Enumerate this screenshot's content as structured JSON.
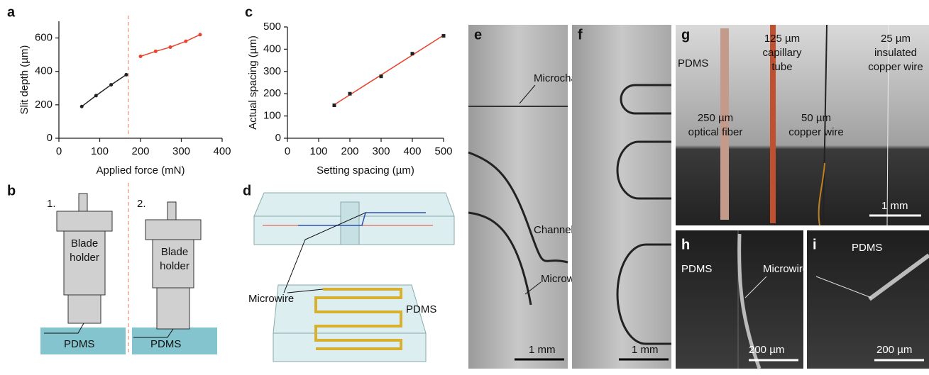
{
  "chart_data": [
    {
      "type": "line",
      "panel": "a",
      "xlabel": "Applied force (mN)",
      "ylabel": "Slit depth (µm)",
      "xlim": [
        0,
        400
      ],
      "xticks": [
        0,
        100,
        200,
        300,
        400
      ],
      "ylim": [
        0,
        700
      ],
      "yticks": [
        0,
        200,
        400,
        600
      ],
      "vline": 170,
      "series": [
        {
          "color": "#222222",
          "x": [
            56,
            91,
            128,
            165
          ],
          "values": [
            190,
            255,
            320,
            380
          ]
        },
        {
          "color": "#e8432d",
          "x": [
            200,
            237,
            273,
            311,
            346
          ],
          "values": [
            490,
            520,
            545,
            580,
            620
          ]
        }
      ]
    },
    {
      "type": "scatter-fit",
      "panel": "c",
      "xlabel": "Setting spacing (µm)",
      "ylabel": "Actual spacing (µm)",
      "xlim": [
        0,
        500
      ],
      "xticks": [
        0,
        100,
        200,
        300,
        400,
        500
      ],
      "ylim": [
        0,
        500
      ],
      "yticks": [
        0,
        100,
        200,
        300,
        400,
        500
      ],
      "fit_color": "#e8432d",
      "color": "#222222",
      "x": [
        150,
        200,
        300,
        400,
        500
      ],
      "values": [
        148,
        200,
        278,
        380,
        460
      ]
    }
  ],
  "panels": {
    "b": {
      "letter": "b",
      "step1": "1.",
      "step2": "2.",
      "holder1": [
        "Blade",
        "holder"
      ],
      "holder2": [
        "Blade",
        "holder"
      ],
      "pdms1": "PDMS",
      "pdms2": "PDMS"
    },
    "d": {
      "letter": "d",
      "microwire": "Microwire",
      "pdms": "PDMS"
    },
    "e": {
      "letter": "e",
      "microchannel": "Microchannel",
      "walls": "Channel walls",
      "microwires": "Microwires",
      "scale": "1 mm"
    },
    "f": {
      "letter": "f",
      "scale": "1 mm"
    },
    "g": {
      "letter": "g",
      "pdms": "PDMS",
      "capillary": [
        "125 µm",
        "capillary",
        "tube"
      ],
      "insulated": [
        "25 µm",
        "insulated",
        "copper wire"
      ],
      "fiber": [
        "250 µm",
        "optical fiber"
      ],
      "copper": [
        "50 µm",
        "copper wire"
      ],
      "scale": "1 mm"
    },
    "h": {
      "letter": "h",
      "pdms": "PDMS",
      "microwires": "Microwires",
      "scale": "200 µm"
    },
    "i": {
      "letter": "i",
      "pdms": "PDMS",
      "scale": "200 µm"
    }
  }
}
